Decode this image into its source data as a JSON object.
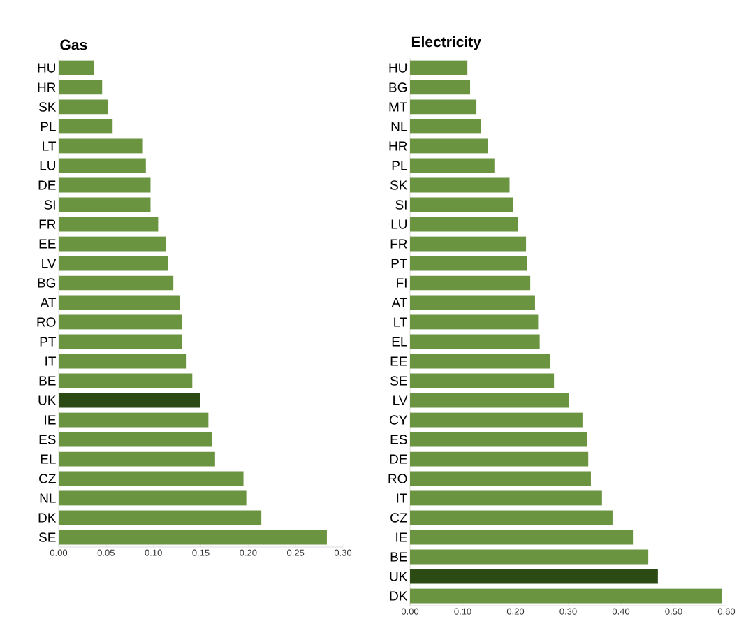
{
  "chart_data": [
    {
      "type": "bar",
      "orientation": "horizontal",
      "title": "Gas",
      "categories": [
        "HU",
        "HR",
        "SK",
        "PL",
        "LT",
        "LU",
        "DE",
        "SI",
        "FR",
        "EE",
        "LV",
        "BG",
        "AT",
        "RO",
        "PT",
        "IT",
        "BE",
        "UK",
        "IE",
        "ES",
        "EL",
        "CZ",
        "NL",
        "DK",
        "SE"
      ],
      "values": [
        0.037,
        0.046,
        0.052,
        0.057,
        0.089,
        0.092,
        0.097,
        0.097,
        0.105,
        0.113,
        0.115,
        0.121,
        0.128,
        0.13,
        0.13,
        0.135,
        0.141,
        0.149,
        0.158,
        0.162,
        0.165,
        0.195,
        0.198,
        0.214,
        0.283
      ],
      "colors": [
        "#6b9440",
        "#6b9440",
        "#6b9440",
        "#6b9440",
        "#6b9440",
        "#6b9440",
        "#6b9440",
        "#6b9440",
        "#6b9440",
        "#6b9440",
        "#6b9440",
        "#6b9440",
        "#6b9440",
        "#6b9440",
        "#6b9440",
        "#6b9440",
        "#6b9440",
        "#2b4a14",
        "#6b9440",
        "#6b9440",
        "#6b9440",
        "#6b9440",
        "#6b9440",
        "#6b9440",
        "#6b9440"
      ],
      "xlim": [
        0,
        0.3
      ],
      "xticks": [
        {
          "value": 0,
          "label": "0.00"
        },
        {
          "value": 0.05,
          "label": "0.05"
        },
        {
          "value": 0.1,
          "label": "0.10"
        },
        {
          "value": 0.15,
          "label": "0.15"
        },
        {
          "value": 0.2,
          "label": "0.20"
        },
        {
          "value": 0.25,
          "label": "0.25"
        },
        {
          "value": 0.3,
          "label": "0.30"
        }
      ]
    },
    {
      "type": "bar",
      "orientation": "horizontal",
      "title": "Electricity",
      "categories": [
        "HU",
        "BG",
        "MT",
        "NL",
        "HR",
        "PL",
        "SK",
        "SI",
        "LU",
        "FR",
        "PT",
        "FI",
        "AT",
        "LT",
        "EL",
        "EE",
        "SE",
        "LV",
        "CY",
        "ES",
        "DE",
        "RO",
        "IT",
        "CZ",
        "IE",
        "BE",
        "UK",
        "DK"
      ],
      "values": [
        0.109,
        0.114,
        0.126,
        0.135,
        0.147,
        0.16,
        0.189,
        0.195,
        0.204,
        0.22,
        0.222,
        0.228,
        0.237,
        0.243,
        0.246,
        0.265,
        0.273,
        0.301,
        0.327,
        0.336,
        0.338,
        0.343,
        0.364,
        0.384,
        0.423,
        0.452,
        0.47,
        0.591
      ],
      "colors": [
        "#6b9440",
        "#6b9440",
        "#6b9440",
        "#6b9440",
        "#6b9440",
        "#6b9440",
        "#6b9440",
        "#6b9440",
        "#6b9440",
        "#6b9440",
        "#6b9440",
        "#6b9440",
        "#6b9440",
        "#6b9440",
        "#6b9440",
        "#6b9440",
        "#6b9440",
        "#6b9440",
        "#6b9440",
        "#6b9440",
        "#6b9440",
        "#6b9440",
        "#6b9440",
        "#6b9440",
        "#6b9440",
        "#6b9440",
        "#2b4a14",
        "#6b9440"
      ],
      "xlim": [
        0,
        0.6
      ],
      "xticks": [
        {
          "value": 0,
          "label": "0.00"
        },
        {
          "value": 0.1,
          "label": "0.10"
        },
        {
          "value": 0.2,
          "label": "0.20"
        },
        {
          "value": 0.3,
          "label": "0.30"
        },
        {
          "value": 0.4,
          "label": "0.40"
        },
        {
          "value": 0.5,
          "label": "0.50"
        },
        {
          "value": 0.6,
          "label": "0.60"
        }
      ]
    }
  ]
}
